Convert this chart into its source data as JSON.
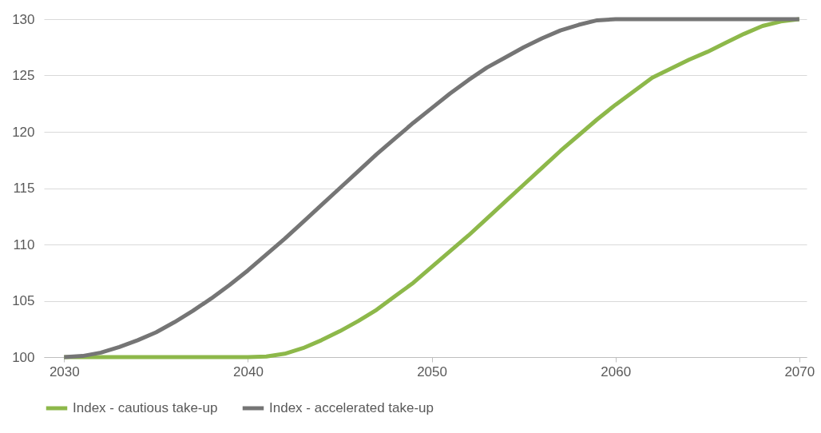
{
  "chart_data": {
    "type": "line",
    "x": [
      2030,
      2031,
      2032,
      2033,
      2034,
      2035,
      2036,
      2037,
      2038,
      2039,
      2040,
      2041,
      2042,
      2043,
      2044,
      2045,
      2046,
      2047,
      2048,
      2049,
      2050,
      2051,
      2052,
      2053,
      2054,
      2055,
      2056,
      2057,
      2058,
      2059,
      2060,
      2061,
      2062,
      2063,
      2064,
      2065,
      2066,
      2067,
      2068,
      2069,
      2070
    ],
    "series": [
      {
        "name": "Index - cautious take-up",
        "color": "#8db84a",
        "values": [
          100,
          100,
          100,
          100,
          100,
          100,
          100,
          100,
          100,
          100,
          100,
          100.05,
          100.3,
          100.8,
          101.5,
          102.3,
          103.2,
          104.2,
          105.4,
          106.6,
          108,
          109.4,
          110.8,
          112.3,
          113.8,
          115.3,
          116.8,
          118.3,
          119.7,
          121.1,
          122.4,
          123.6,
          124.8,
          125.6,
          126.4,
          127.1,
          127.9,
          128.7,
          129.4,
          129.8,
          130
        ]
      },
      {
        "name": "Index - accelerated take-up",
        "color": "#757575",
        "values": [
          100,
          100.1,
          100.4,
          100.9,
          101.5,
          102.2,
          103.1,
          104.1,
          105.2,
          106.4,
          107.7,
          109.1,
          110.5,
          112,
          113.5,
          115,
          116.5,
          118,
          119.4,
          120.8,
          122.1,
          123.4,
          124.6,
          125.7,
          126.6,
          127.5,
          128.3,
          129,
          129.5,
          129.9,
          130,
          130,
          130,
          130,
          130,
          130,
          130,
          130,
          130,
          130,
          130
        ]
      }
    ],
    "xlim": [
      2028.9,
      2070.4
    ],
    "xticks": [
      2030,
      2040,
      2050,
      2060,
      2070
    ],
    "ylim": [
      100,
      130
    ],
    "yticks": [
      100,
      105,
      110,
      115,
      120,
      125,
      130
    ],
    "grid": "y",
    "legend": "bottom",
    "line_style": "solid"
  }
}
